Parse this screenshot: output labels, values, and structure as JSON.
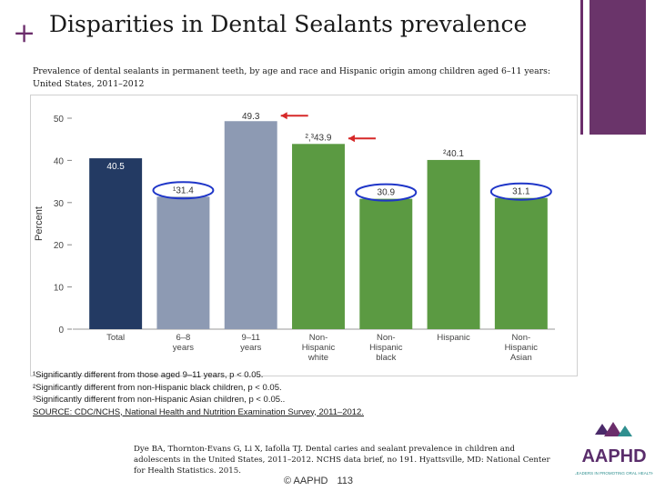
{
  "slide": {
    "plus": "+",
    "title": "Disparities in Dental Sealants prevalence",
    "subtitle": "Prevalence of dental sealants in permanent teeth, by age and race and Hispanic origin among children aged 6–11 years: United States, 2011–2012",
    "footnotes": [
      "¹Significantly different from those aged 9–11 years, p < 0.05.",
      "²Significantly different from non-Hispanic black children, p < 0.05.",
      "³Significantly different from non-Hispanic Asian children, p < 0.05.."
    ],
    "source": "SOURCE: CDC/NCHS, National Health and Nutrition Examination Survey, 2011–2012.",
    "citation": "Dye BA, Thornton-Evans G, Li X, Iafolla TJ. Dental caries and sealant prevalence in children and adolescents in the United States, 2011–2012. NCHS data brief, no 191. Hyattsville, MD: National Center for Health Statistics. 2015.",
    "footer_left": "© AAPHD",
    "page_number": "113",
    "logo_text": "AAPHD",
    "logo_tagline": "LEADERS IN PROMOTING ORAL HEALTH",
    "accent_color": "#6b2d6b"
  },
  "chart_data": {
    "type": "bar",
    "ylabel": "Percent",
    "ylim": [
      0,
      50
    ],
    "yticks": [
      0,
      10,
      20,
      30,
      40,
      50
    ],
    "grid": false,
    "bars": [
      {
        "label": [
          "Total"
        ],
        "value": 40.5,
        "display": "40.5",
        "color": "#233a63"
      },
      {
        "label": [
          "6–8",
          "years"
        ],
        "value": 31.4,
        "display": "¹31.4",
        "color": "#8d9ab3",
        "highlight": true
      },
      {
        "label": [
          "9–11",
          "years"
        ],
        "value": 49.3,
        "display": "49.3",
        "color": "#8d9ab3",
        "arrow": true
      },
      {
        "label": [
          "Non-",
          "Hispanic",
          "white"
        ],
        "value": 43.9,
        "display": "²,³43.9",
        "color": "#5b9a42",
        "arrow": true
      },
      {
        "label": [
          "Non-",
          "Hispanic",
          "black"
        ],
        "value": 30.9,
        "display": "30.9",
        "color": "#5b9a42",
        "highlight": true
      },
      {
        "label": [
          "Hispanic"
        ],
        "value": 40.1,
        "display": "²40.1",
        "color": "#5b9a42"
      },
      {
        "label": [
          "Non-",
          "Hispanic",
          "Asian"
        ],
        "value": 31.1,
        "display": "31.1",
        "color": "#5b9a42",
        "highlight": true
      }
    ],
    "annotation_colors": {
      "arrow": "#d62828",
      "ellipse": "#1f36c8"
    }
  }
}
